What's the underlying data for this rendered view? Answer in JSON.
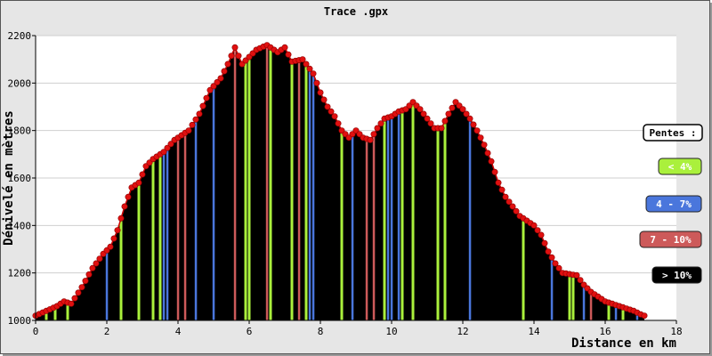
{
  "chart_data": {
    "type": "area",
    "title": "Trace .gpx",
    "xlabel": "Distance en km",
    "ylabel": "Dénivelé en mètres",
    "xlim": [
      0,
      18
    ],
    "ylim": [
      1000,
      2200
    ],
    "x_ticks": [
      "0",
      "2",
      "4",
      "6",
      "8",
      "10",
      "12",
      "14",
      "16",
      "18"
    ],
    "y_ticks": [
      "1000",
      "1200",
      "1400",
      "1600",
      "1800",
      "2000",
      "2200"
    ],
    "grid": true,
    "line_color": "#cc0000",
    "fill_color": "#000000",
    "profile": {
      "x": [
        0,
        0.3,
        0.6,
        0.8,
        1.0,
        1.3,
        1.6,
        1.9,
        2.1,
        2.3,
        2.5,
        2.7,
        2.9,
        3.1,
        3.3,
        3.6,
        3.9,
        4.1,
        4.3,
        4.6,
        4.9,
        5.2,
        5.4,
        5.6,
        5.8,
        6.0,
        6.2,
        6.5,
        6.8,
        7.0,
        7.2,
        7.5,
        7.8,
        8.0,
        8.2,
        8.4,
        8.6,
        8.8,
        9.0,
        9.2,
        9.4,
        9.6,
        9.8,
        10.0,
        10.2,
        10.4,
        10.6,
        10.8,
        11.0,
        11.2,
        11.4,
        11.6,
        11.8,
        12.0,
        12.2,
        12.4,
        12.6,
        12.8,
        13.0,
        13.2,
        13.4,
        13.6,
        13.8,
        14.0,
        14.2,
        14.4,
        14.6,
        14.8,
        15.0,
        15.2,
        15.4,
        15.6,
        15.8,
        16.0,
        16.2,
        16.4,
        16.6,
        16.8,
        17.0,
        17.1
      ],
      "y": [
        1020,
        1040,
        1060,
        1080,
        1070,
        1140,
        1220,
        1280,
        1310,
        1380,
        1480,
        1560,
        1580,
        1650,
        1680,
        1710,
        1760,
        1780,
        1800,
        1870,
        1970,
        2020,
        2080,
        2150,
        2080,
        2110,
        2140,
        2160,
        2130,
        2150,
        2090,
        2100,
        2040,
        1960,
        1900,
        1860,
        1800,
        1770,
        1800,
        1770,
        1760,
        1810,
        1850,
        1860,
        1880,
        1890,
        1920,
        1890,
        1850,
        1810,
        1810,
        1870,
        1920,
        1890,
        1850,
        1800,
        1740,
        1670,
        1580,
        1520,
        1480,
        1440,
        1420,
        1400,
        1360,
        1290,
        1240,
        1200,
        1195,
        1190,
        1150,
        1120,
        1100,
        1080,
        1070,
        1060,
        1050,
        1040,
        1025,
        1020
      ]
    },
    "slope_bands": {
      "lt4": [
        0.3,
        0.55,
        0.9,
        2.4,
        2.9,
        3.3,
        3.5,
        5.9,
        6.0,
        6.6,
        7.2,
        7.6,
        8.6,
        9.8,
        10.3,
        10.6,
        11.3,
        11.5,
        13.7,
        15.0,
        15.1,
        16.1,
        16.5
      ],
      "b4_7": [
        2.0,
        3.6,
        3.7,
        4.5,
        5.0,
        7.7,
        7.8,
        8.9,
        9.9,
        10.0,
        10.2,
        12.2,
        14.5,
        15.4,
        16.3,
        16.9
      ],
      "b7_10": [
        4.0,
        4.2,
        5.6,
        6.5,
        7.4,
        9.3,
        9.5,
        15.6
      ],
      "gt10": []
    },
    "legend": {
      "title": "Pentes :",
      "placement": "right",
      "entries": [
        {
          "label": "< 4%",
          "color": "#aaf03c"
        },
        {
          "label": "4 - 7%",
          "color": "#4a76dc"
        },
        {
          "label": "7 - 10%",
          "color": "#cd5a5a"
        },
        {
          "label": "> 10%",
          "color": "#000000"
        }
      ]
    }
  }
}
